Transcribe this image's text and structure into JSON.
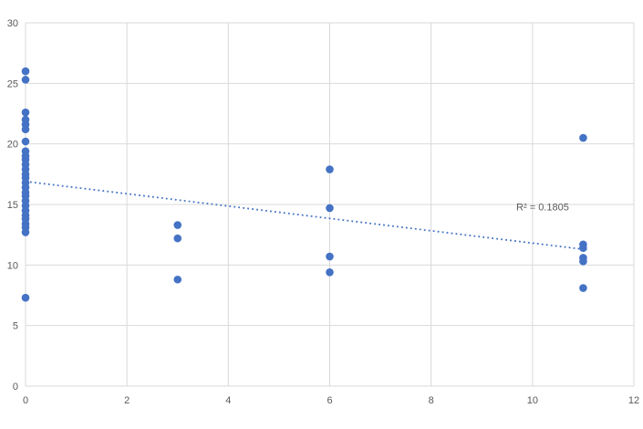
{
  "chart_data": {
    "type": "scatter",
    "xlim": [
      0,
      12
    ],
    "ylim": [
      0,
      30
    ],
    "x_ticks": [
      0,
      2,
      4,
      6,
      8,
      10,
      12
    ],
    "y_ticks": [
      0,
      5,
      10,
      15,
      20,
      25,
      30
    ],
    "grid": true,
    "legend": "none",
    "series": [
      {
        "name": "scatter-series",
        "marker_color": "#4472C4",
        "points": [
          [
            0,
            26.0
          ],
          [
            0,
            25.3
          ],
          [
            0,
            22.6
          ],
          [
            0,
            22.0
          ],
          [
            0,
            21.6
          ],
          [
            0,
            21.2
          ],
          [
            0,
            20.2
          ],
          [
            0,
            19.4
          ],
          [
            0,
            19.0
          ],
          [
            0,
            18.7
          ],
          [
            0,
            18.3
          ],
          [
            0,
            17.9
          ],
          [
            0,
            17.5
          ],
          [
            0,
            17.2
          ],
          [
            0,
            16.8
          ],
          [
            0,
            16.4
          ],
          [
            0,
            16.0
          ],
          [
            0,
            15.7
          ],
          [
            0,
            15.3
          ],
          [
            0,
            14.9
          ],
          [
            0,
            14.5
          ],
          [
            0,
            14.1
          ],
          [
            0,
            13.8
          ],
          [
            0,
            13.4
          ],
          [
            0,
            13.1
          ],
          [
            0,
            12.7
          ],
          [
            0,
            7.3
          ],
          [
            3,
            13.3
          ],
          [
            3,
            12.2
          ],
          [
            3,
            8.8
          ],
          [
            6,
            17.9
          ],
          [
            6,
            14.7
          ],
          [
            6,
            10.7
          ],
          [
            6,
            9.4
          ],
          [
            11,
            20.5
          ],
          [
            11,
            11.7
          ],
          [
            11,
            11.4
          ],
          [
            11,
            10.6
          ],
          [
            11,
            10.3
          ],
          [
            11,
            8.1
          ]
        ]
      }
    ],
    "trendline": {
      "type": "linear",
      "style": "dotted",
      "color": "#4472C4",
      "x_start": 0,
      "y_start": 16.9,
      "x_end": 11,
      "y_end": 11.3,
      "r_squared": 0.1805
    },
    "annotation": {
      "text": "R² = 0.1805",
      "x": 10.2,
      "y": 14.8
    }
  },
  "colors": {
    "marker": "#4472C4",
    "trendline": "#4472C4",
    "gridline": "#D9D9D9",
    "axis_line": "#D9D9D9",
    "tick_label": "#595959",
    "background": "#FFFFFF"
  }
}
